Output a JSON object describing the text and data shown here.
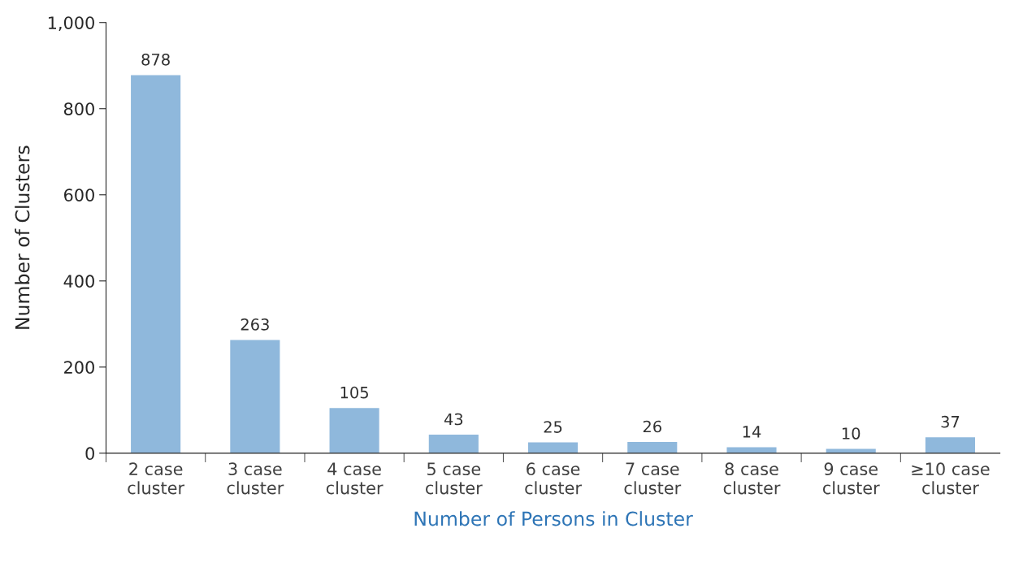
{
  "chart_data": {
    "type": "bar",
    "categories": [
      "2 case\ncluster",
      "3 case\ncluster",
      "4 case\ncluster",
      "5 case\ncluster",
      "6 case\ncluster",
      "7 case\ncluster",
      "8 case\ncluster",
      "9 case\ncluster",
      "≥10 case\ncluster"
    ],
    "values": [
      878,
      263,
      105,
      43,
      25,
      26,
      14,
      10,
      37
    ],
    "color": "#8fb8dc",
    "xlabel": "Number of Persons in Cluster",
    "ylabel": "Number of Clusters",
    "ylim": [
      0,
      1000
    ],
    "yticks": [
      0,
      200,
      400,
      600,
      800,
      {
        "value": 1000,
        "label": "1,000"
      }
    ],
    "data_labels": true,
    "grid": false
  }
}
